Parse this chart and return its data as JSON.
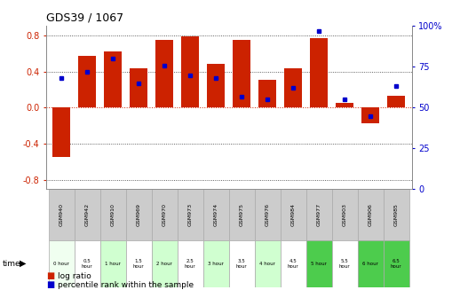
{
  "title": "GDS39 / 1067",
  "samples": [
    "GSM940",
    "GSM942",
    "GSM910",
    "GSM969",
    "GSM970",
    "GSM973",
    "GSM974",
    "GSM975",
    "GSM976",
    "GSM984",
    "GSM977",
    "GSM903",
    "GSM906",
    "GSM985"
  ],
  "time_labels": [
    "0 hour",
    "0.5\nhour",
    "1 hour",
    "1.5\nhour",
    "2 hour",
    "2.5\nhour",
    "3 hour",
    "3.5\nhour",
    "4 hour",
    "4.5\nhour",
    "5 hour",
    "5.5\nhour",
    "6 hour",
    "6.5\nhour"
  ],
  "log_ratio": [
    -0.54,
    0.57,
    0.62,
    0.43,
    0.75,
    0.79,
    0.48,
    0.75,
    0.31,
    0.43,
    0.77,
    0.05,
    -0.17,
    0.13
  ],
  "percentile": [
    68,
    72,
    80,
    65,
    76,
    70,
    68,
    57,
    55,
    62,
    97,
    55,
    45,
    63
  ],
  "time_colors": [
    "#f0fff0",
    "#ffffff",
    "#d0ffd0",
    "#ffffff",
    "#d0ffd0",
    "#ffffff",
    "#d0ffd0",
    "#ffffff",
    "#d0ffd0",
    "#ffffff",
    "#4dcc4d",
    "#ffffff",
    "#4dcc4d",
    "#4dcc4d"
  ],
  "bar_color": "#cc2200",
  "dot_color": "#0000cc",
  "ylim_left": [
    -0.9,
    0.9
  ],
  "ylim_right": [
    0,
    100
  ],
  "yticks_left": [
    -0.8,
    -0.4,
    0.0,
    0.4,
    0.8
  ],
  "yticks_right": [
    0,
    25,
    50,
    75,
    100
  ],
  "bg_color": "#ffffff",
  "sample_row_color": "#cccccc",
  "legend_log_label": "log ratio",
  "legend_pct_label": "percentile rank within the sample"
}
